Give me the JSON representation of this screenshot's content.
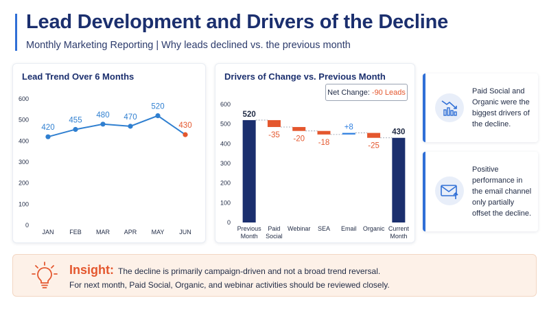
{
  "header": {
    "title": "Lead Development and Drivers of the Decline",
    "subtitle": "Monthly Marketing Reporting | Why leads declined vs. the previous month"
  },
  "colors": {
    "accent": "#2f6fd6",
    "line": "#2f7fd0",
    "highlight": "#e4572e",
    "dark_bar": "#1b2f6e",
    "negative_bar": "#e4572e",
    "positive_bar": "#2f7fe0"
  },
  "chart_data": [
    {
      "type": "line",
      "title": "Lead Trend Over 6 Months",
      "categories": [
        "JAN",
        "FEB",
        "MAR",
        "APR",
        "MAY",
        "JUN"
      ],
      "values": [
        420,
        455,
        480,
        470,
        520,
        430
      ],
      "data_labels": [
        "420",
        "455",
        "480",
        "470",
        "520",
        "430"
      ],
      "yticks": [
        "0",
        "100",
        "200",
        "300",
        "400",
        "500",
        "600"
      ],
      "ylim": [
        0,
        600
      ],
      "grid": false,
      "highlight_last": true
    },
    {
      "type": "bar",
      "subtype": "waterfall",
      "title": "Drivers of Change vs. Previous Month",
      "annotation": {
        "label": "Net Change:",
        "value": "-90 Leads"
      },
      "categories": [
        "Previous Month",
        "Paid Social",
        "Webinar",
        "SEA",
        "Email",
        "Organic",
        "Current Month"
      ],
      "category_lines": [
        [
          "Previous",
          "Month"
        ],
        [
          "Paid",
          "Social"
        ],
        [
          "Webinar"
        ],
        [
          "SEA"
        ],
        [
          "Email"
        ],
        [
          "Organic"
        ],
        [
          "Current",
          "Month"
        ]
      ],
      "values": [
        520,
        -35,
        -20,
        -18,
        8,
        -25,
        430
      ],
      "data_labels": [
        "520",
        "-35",
        "-20",
        "-18",
        "+8",
        "-25",
        "430"
      ],
      "kinds": [
        "total",
        "delta",
        "delta",
        "delta",
        "delta",
        "delta",
        "total"
      ],
      "yticks": [
        "0",
        "100",
        "200",
        "300",
        "400",
        "500",
        "600"
      ],
      "ylim": [
        0,
        600
      ],
      "grid": false
    }
  ],
  "side_cards": [
    {
      "icon": "chart-decline-icon",
      "text": "Paid Social and Organic were the biggest drivers of the decline."
    },
    {
      "icon": "email-icon",
      "text": "Positive performance in the email channel only partially offset the decline."
    }
  ],
  "insight": {
    "icon": "lightbulb-icon",
    "heading": "Insight:",
    "line1": "The decline is primarily campaign-driven and not a broad trend reversal.",
    "line2": "For next month, Paid Social, Organic, and webinar activities should be reviewed closely."
  }
}
